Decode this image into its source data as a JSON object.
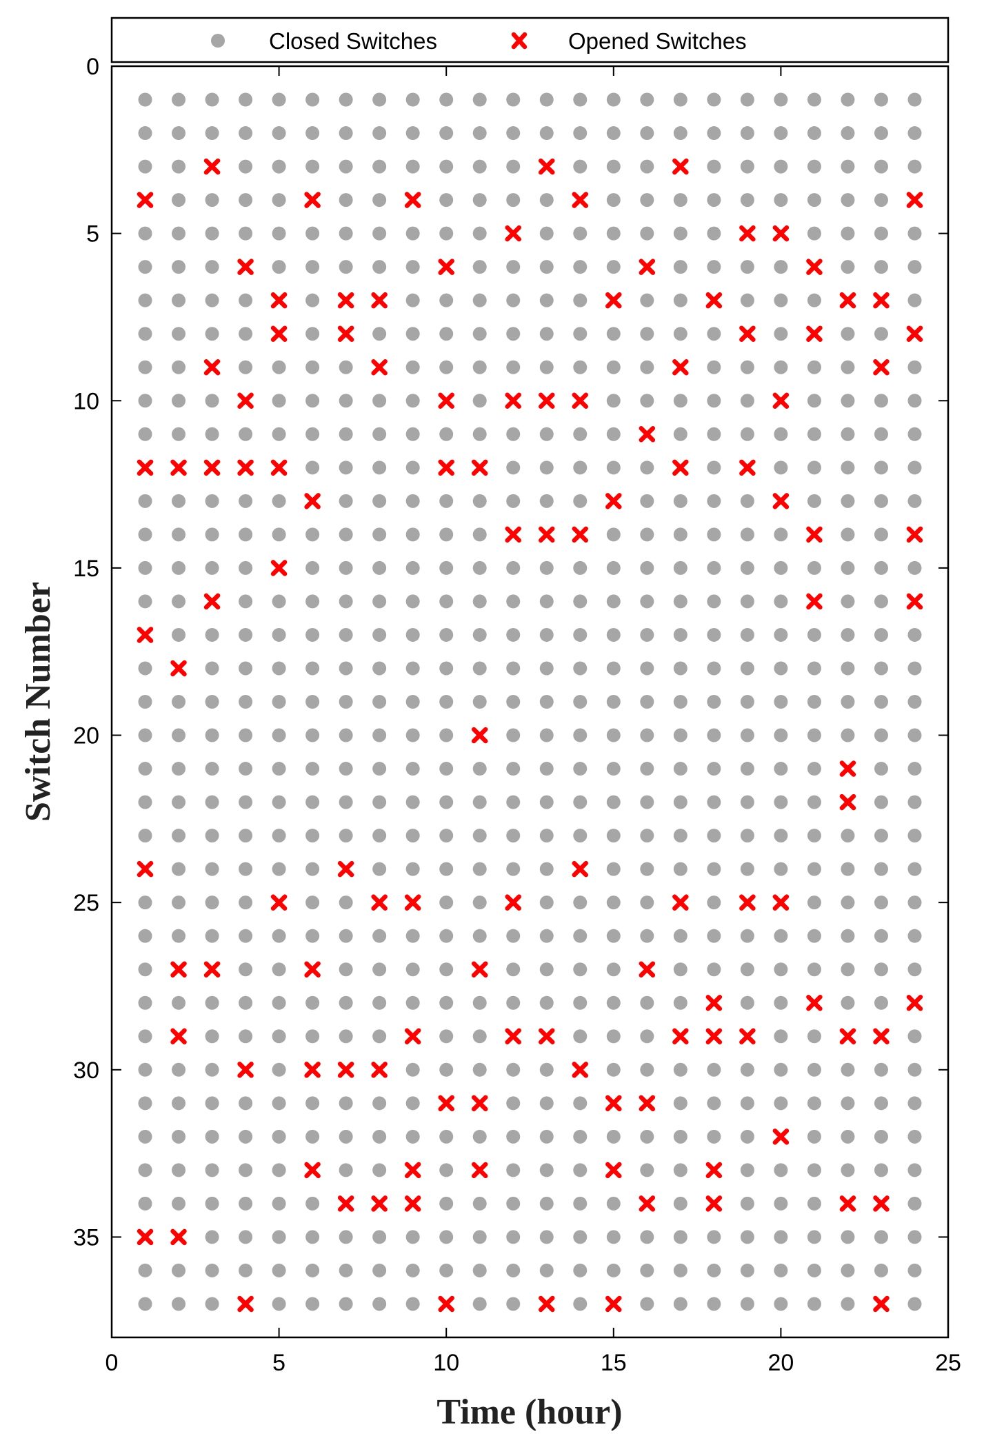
{
  "chart_data": {
    "type": "scatter",
    "title": "",
    "xlabel": "Time (hour)",
    "ylabel": "Switch Number",
    "xlim": [
      0,
      25
    ],
    "ylim": [
      0,
      38
    ],
    "y_axis_reversed": true,
    "x_ticks": [
      0,
      5,
      10,
      15,
      20,
      25
    ],
    "y_ticks": [
      0,
      5,
      10,
      15,
      20,
      25,
      30,
      35
    ],
    "legend_position": "top-outside",
    "grid": false,
    "hours": [
      1,
      2,
      3,
      4,
      5,
      6,
      7,
      8,
      9,
      10,
      11,
      12,
      13,
      14,
      15,
      16,
      17,
      18,
      19,
      20,
      21,
      22,
      23,
      24
    ],
    "switch_count": 37,
    "series": [
      {
        "name": "Closed Switches",
        "marker": "circle",
        "color": "#a6a6a6",
        "description": "all switch/hour points not listed as opened"
      },
      {
        "name": "Opened Switches",
        "marker": "x",
        "color": "#ff0000"
      }
    ],
    "opened": {
      "1": [
        4,
        12,
        17,
        24,
        35
      ],
      "2": [
        12,
        18,
        27,
        29,
        35
      ],
      "3": [
        3,
        9,
        12,
        16,
        27
      ],
      "4": [
        6,
        10,
        12,
        30,
        37
      ],
      "5": [
        7,
        8,
        12,
        15,
        25
      ],
      "6": [
        4,
        13,
        27,
        30,
        33
      ],
      "7": [
        7,
        8,
        24,
        30,
        34
      ],
      "8": [
        7,
        9,
        25,
        30,
        34
      ],
      "9": [
        4,
        25,
        29,
        33,
        34
      ],
      "10": [
        6,
        10,
        12,
        31,
        37
      ],
      "11": [
        12,
        20,
        27,
        31,
        33
      ],
      "12": [
        5,
        10,
        14,
        25,
        29
      ],
      "13": [
        3,
        10,
        14,
        29,
        37
      ],
      "14": [
        4,
        10,
        14,
        24,
        30
      ],
      "15": [
        7,
        13,
        31,
        33,
        37
      ],
      "16": [
        6,
        11,
        27,
        31,
        34
      ],
      "17": [
        3,
        9,
        12,
        25,
        29
      ],
      "18": [
        7,
        28,
        29,
        33,
        34
      ],
      "19": [
        5,
        8,
        12,
        25,
        29
      ],
      "20": [
        5,
        10,
        13,
        25,
        32
      ],
      "21": [
        6,
        8,
        14,
        16,
        28
      ],
      "22": [
        7,
        21,
        22,
        29,
        34
      ],
      "23": [
        7,
        9,
        29,
        34,
        37
      ],
      "24": [
        4,
        8,
        14,
        16,
        28
      ]
    }
  },
  "legend": {
    "closed_label": "Closed Switches",
    "opened_label": "Opened Switches"
  }
}
